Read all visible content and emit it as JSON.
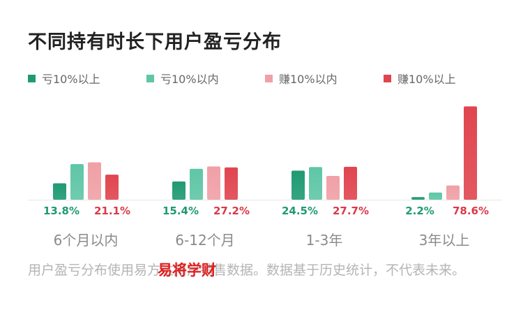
{
  "chart_data": {
    "type": "bar",
    "title": "不同持有时长下用户盈亏分布",
    "categories": [
      "6个月以内",
      "6-12个月",
      "1-3年",
      "3年以上"
    ],
    "series": [
      {
        "name": "亏10%以上",
        "color": "#1f9a73",
        "values": [
          13.8,
          15.4,
          24.5,
          2.2
        ]
      },
      {
        "name": "亏10%以内",
        "color": "#5fc6a6",
        "values": [
          30.0,
          26.0,
          27.5,
          6.0
        ]
      },
      {
        "name": "赚10%以内",
        "color": "#f0a0a6",
        "values": [
          31.5,
          28.0,
          20.0,
          12.0
        ]
      },
      {
        "name": "赚10%以上",
        "color": "#e0454f",
        "values": [
          21.1,
          27.2,
          27.7,
          78.6
        ]
      }
    ],
    "labels": [
      {
        "loss": "13.8%",
        "gain": "21.1%"
      },
      {
        "loss": "15.4%",
        "gain": "27.2%"
      },
      {
        "loss": "24.5%",
        "gain": "27.7%"
      },
      {
        "loss": "2.2%",
        "gain": "78.6%"
      }
    ],
    "loss_label_color": "#1f9a73",
    "gain_label_color": "#d93a48",
    "ylim": [
      0,
      80
    ],
    "legend_position": "top"
  },
  "footnote": "用户盈亏分布使用易方达用户销售数据。数据基于历史统计，不代表未来。",
  "watermark": "易将学财"
}
